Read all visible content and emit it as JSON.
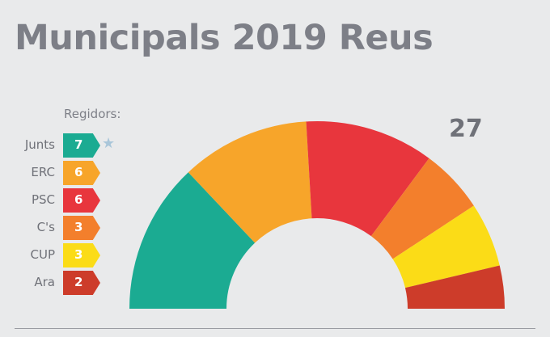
{
  "title": "Municipals 2019 Reus",
  "legend_title": "Regidors:",
  "total_label": "27",
  "chart_data": {
    "type": "pie",
    "subtype": "semicircle-parliament",
    "title": "Municipals 2019 Reus",
    "total": 27,
    "categories": [
      "Junts",
      "ERC",
      "PSC",
      "C's",
      "CUP",
      "Ara"
    ],
    "values": [
      7,
      6,
      6,
      3,
      3,
      2
    ],
    "colors": [
      "#1bab92",
      "#f7a52a",
      "#e8363d",
      "#f37f2c",
      "#fbdc17",
      "#cd3c2a"
    ],
    "legend_title": "Regidors:",
    "legend_placement": "left",
    "winner_marker": "star",
    "winner": "Junts"
  }
}
